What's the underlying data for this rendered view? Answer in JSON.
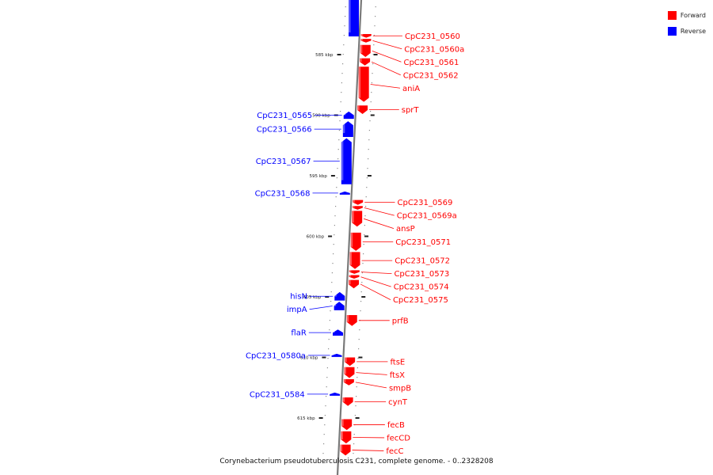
{
  "legend": {
    "forward": {
      "label": "Forward",
      "color": "#ff0000"
    },
    "reverse": {
      "label": "Reverse",
      "color": "#0000ff"
    }
  },
  "caption": "Corynebacterium pseudotuberculosis C231, complete genome. - 0..2328208",
  "genome": {
    "length_bp": 2328208
  },
  "scale_ticks": [
    {
      "label": "585 kbp",
      "position_kbp": 585
    },
    {
      "label": "590 kbp",
      "position_kbp": 590
    },
    {
      "label": "595 kbp",
      "position_kbp": 595
    },
    {
      "label": "600 kbp",
      "position_kbp": 600
    },
    {
      "label": "605 kbp",
      "position_kbp": 605
    },
    {
      "label": "610 kbp",
      "position_kbp": 610
    },
    {
      "label": "615 kbp",
      "position_kbp": 615
    }
  ],
  "genes": [
    {
      "label": "",
      "strand": "reverse",
      "start_kbp": 580.0,
      "end_kbp": 583.5
    },
    {
      "label": "CpC231_0560",
      "strand": "forward",
      "start_kbp": 583.3,
      "end_kbp": 583.6
    },
    {
      "label": "CpC231_0560a",
      "strand": "forward",
      "start_kbp": 583.7,
      "end_kbp": 584.0
    },
    {
      "label": "CpC231_0561",
      "strand": "forward",
      "start_kbp": 584.2,
      "end_kbp": 585.2
    },
    {
      "label": "CpC231_0562",
      "strand": "forward",
      "start_kbp": 585.3,
      "end_kbp": 585.9
    },
    {
      "label": "aniA",
      "strand": "forward",
      "start_kbp": 586.0,
      "end_kbp": 588.9
    },
    {
      "label": "sprT",
      "strand": "forward",
      "start_kbp": 589.2,
      "end_kbp": 589.9
    },
    {
      "label": "CpC231_0565",
      "strand": "reverse",
      "start_kbp": 589.7,
      "end_kbp": 590.3
    },
    {
      "label": "CpC231_0566",
      "strand": "reverse",
      "start_kbp": 590.5,
      "end_kbp": 591.8
    },
    {
      "label": "CpC231_0567",
      "strand": "reverse",
      "start_kbp": 591.9,
      "end_kbp": 595.7
    },
    {
      "label": "CpC231_0568",
      "strand": "reverse",
      "start_kbp": 596.3,
      "end_kbp": 596.5
    },
    {
      "label": "CpC231_0569",
      "strand": "forward",
      "start_kbp": 597.0,
      "end_kbp": 597.4
    },
    {
      "label": "CpC231_0569a",
      "strand": "forward",
      "start_kbp": 597.5,
      "end_kbp": 597.8
    },
    {
      "label": "ansP",
      "strand": "forward",
      "start_kbp": 597.9,
      "end_kbp": 599.2
    },
    {
      "label": "CpC231_0571",
      "strand": "forward",
      "start_kbp": 599.7,
      "end_kbp": 601.2
    },
    {
      "label": "CpC231_0572",
      "strand": "forward",
      "start_kbp": 601.3,
      "end_kbp": 602.7
    },
    {
      "label": "CpC231_0573",
      "strand": "forward",
      "start_kbp": 602.8,
      "end_kbp": 603.1
    },
    {
      "label": "CpC231_0574",
      "strand": "forward",
      "start_kbp": 603.2,
      "end_kbp": 603.5
    },
    {
      "label": "CpC231_0575",
      "strand": "forward",
      "start_kbp": 603.6,
      "end_kbp": 604.3
    },
    {
      "label": "hisN",
      "strand": "reverse",
      "start_kbp": 604.6,
      "end_kbp": 605.3
    },
    {
      "label": "impA",
      "strand": "reverse",
      "start_kbp": 605.4,
      "end_kbp": 606.1
    },
    {
      "label": "prfB",
      "strand": "forward",
      "start_kbp": 606.5,
      "end_kbp": 607.4
    },
    {
      "label": "flaR",
      "strand": "reverse",
      "start_kbp": 607.7,
      "end_kbp": 608.2
    },
    {
      "label": "CpC231_0580a",
      "strand": "reverse",
      "start_kbp": 609.7,
      "end_kbp": 609.9
    },
    {
      "label": "ftsE",
      "strand": "forward",
      "start_kbp": 610.0,
      "end_kbp": 610.7
    },
    {
      "label": "ftsX",
      "strand": "forward",
      "start_kbp": 610.8,
      "end_kbp": 611.7
    },
    {
      "label": "smpB",
      "strand": "forward",
      "start_kbp": 611.8,
      "end_kbp": 612.3
    },
    {
      "label": "CpC231_0584",
      "strand": "reverse",
      "start_kbp": 612.9,
      "end_kbp": 613.1
    },
    {
      "label": "cynT",
      "strand": "forward",
      "start_kbp": 613.3,
      "end_kbp": 614.0
    },
    {
      "label": "fecB",
      "strand": "forward",
      "start_kbp": 615.1,
      "end_kbp": 616.0
    },
    {
      "label": "fecCD",
      "strand": "forward",
      "start_kbp": 616.1,
      "end_kbp": 617.1
    },
    {
      "label": "fecC",
      "strand": "forward",
      "start_kbp": 617.2,
      "end_kbp": 618.1
    }
  ]
}
